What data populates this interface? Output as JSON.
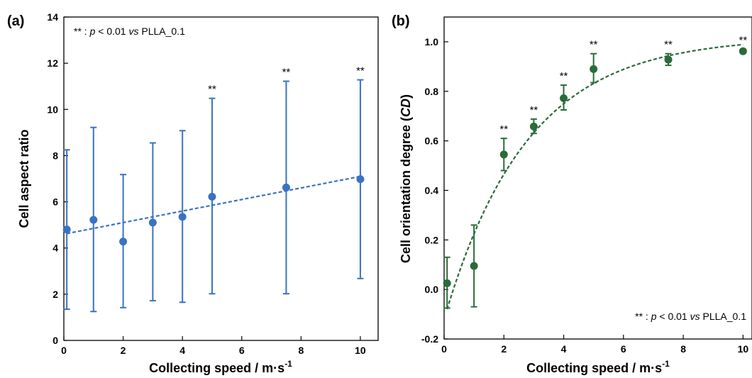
{
  "chart_data": [
    {
      "type": "scatter",
      "panel_label": "(a)",
      "xlabel_main": "Collecting speed / m",
      "xlabel_dot": "·",
      "xlabel_unit": "s",
      "xlabel_sup": "-1",
      "ylabel": "Cell aspect ratio",
      "xlim": [
        0,
        10.6
      ],
      "ylim": [
        0,
        14
      ],
      "xticks": [
        0,
        2,
        4,
        6,
        8,
        10
      ],
      "yticks": [
        0,
        2,
        4,
        6,
        8,
        10,
        12,
        14
      ],
      "grid": false,
      "color": "#3a72c2",
      "annotation": {
        "prefix": "** : ",
        "p": "p",
        "mid": " < 0.01 ",
        "vs": "vs",
        "suffix": " PLLA_0.1"
      },
      "points": [
        {
          "x": 0.1,
          "y": 4.8,
          "lo": 1.35,
          "hi": 8.25,
          "mark": ""
        },
        {
          "x": 1,
          "y": 5.22,
          "lo": 1.25,
          "hi": 9.22,
          "mark": ""
        },
        {
          "x": 2,
          "y": 4.28,
          "lo": 1.42,
          "hi": 7.18,
          "mark": ""
        },
        {
          "x": 3,
          "y": 5.1,
          "lo": 1.72,
          "hi": 8.55,
          "mark": ""
        },
        {
          "x": 4,
          "y": 5.35,
          "lo": 1.65,
          "hi": 9.08,
          "mark": ""
        },
        {
          "x": 5,
          "y": 6.22,
          "lo": 2.02,
          "hi": 10.48,
          "mark": "**"
        },
        {
          "x": 7.5,
          "y": 6.62,
          "lo": 2.02,
          "hi": 11.22,
          "mark": "**"
        },
        {
          "x": 10,
          "y": 6.98,
          "lo": 2.68,
          "hi": 11.28,
          "mark": "**"
        }
      ],
      "fit": {
        "type": "linear",
        "intercept": 4.6,
        "slope": 0.25,
        "x_range": [
          0.1,
          10
        ]
      }
    },
    {
      "type": "scatter",
      "panel_label": "(b)",
      "xlabel_main": "Collecting speed / m",
      "xlabel_dot": "·",
      "xlabel_unit": "s",
      "xlabel_sup": "-1",
      "ylabel_main": "Cell orientation degree (",
      "ylabel_italic": "CD",
      "ylabel_close": ")",
      "xlim": [
        0,
        10.3
      ],
      "ylim": [
        -0.2,
        1.1
      ],
      "xticks": [
        0,
        2,
        4,
        6,
        8,
        10
      ],
      "yticks": [
        -0.2,
        0.0,
        0.2,
        0.4,
        0.6,
        0.8,
        1.0
      ],
      "grid": false,
      "color": "#2a6b3a",
      "annotation": {
        "prefix": "** : ",
        "p": "p",
        "mid": " < 0.01 ",
        "vs": "vs",
        "suffix": " PLLA_0.1"
      },
      "points": [
        {
          "x": 0.1,
          "y": 0.025,
          "lo": -0.075,
          "hi": 0.13,
          "mark": ""
        },
        {
          "x": 1,
          "y": 0.095,
          "lo": -0.07,
          "hi": 0.26,
          "mark": ""
        },
        {
          "x": 2,
          "y": 0.545,
          "lo": 0.48,
          "hi": 0.61,
          "mark": "**"
        },
        {
          "x": 3,
          "y": 0.658,
          "lo": 0.63,
          "hi": 0.688,
          "mark": "**"
        },
        {
          "x": 4,
          "y": 0.772,
          "lo": 0.725,
          "hi": 0.825,
          "mark": "**"
        },
        {
          "x": 5,
          "y": 0.89,
          "lo": 0.835,
          "hi": 0.952,
          "mark": "**"
        },
        {
          "x": 7.5,
          "y": 0.928,
          "lo": 0.905,
          "hi": 0.952,
          "mark": "**"
        },
        {
          "x": 10,
          "y": 0.962,
          "lo": 0.955,
          "hi": 0.97,
          "mark": "**"
        }
      ],
      "fit": {
        "type": "exponential",
        "a": 1.02,
        "b": 1.14,
        "k": 0.36,
        "x_range": [
          0.1,
          10
        ]
      }
    }
  ]
}
